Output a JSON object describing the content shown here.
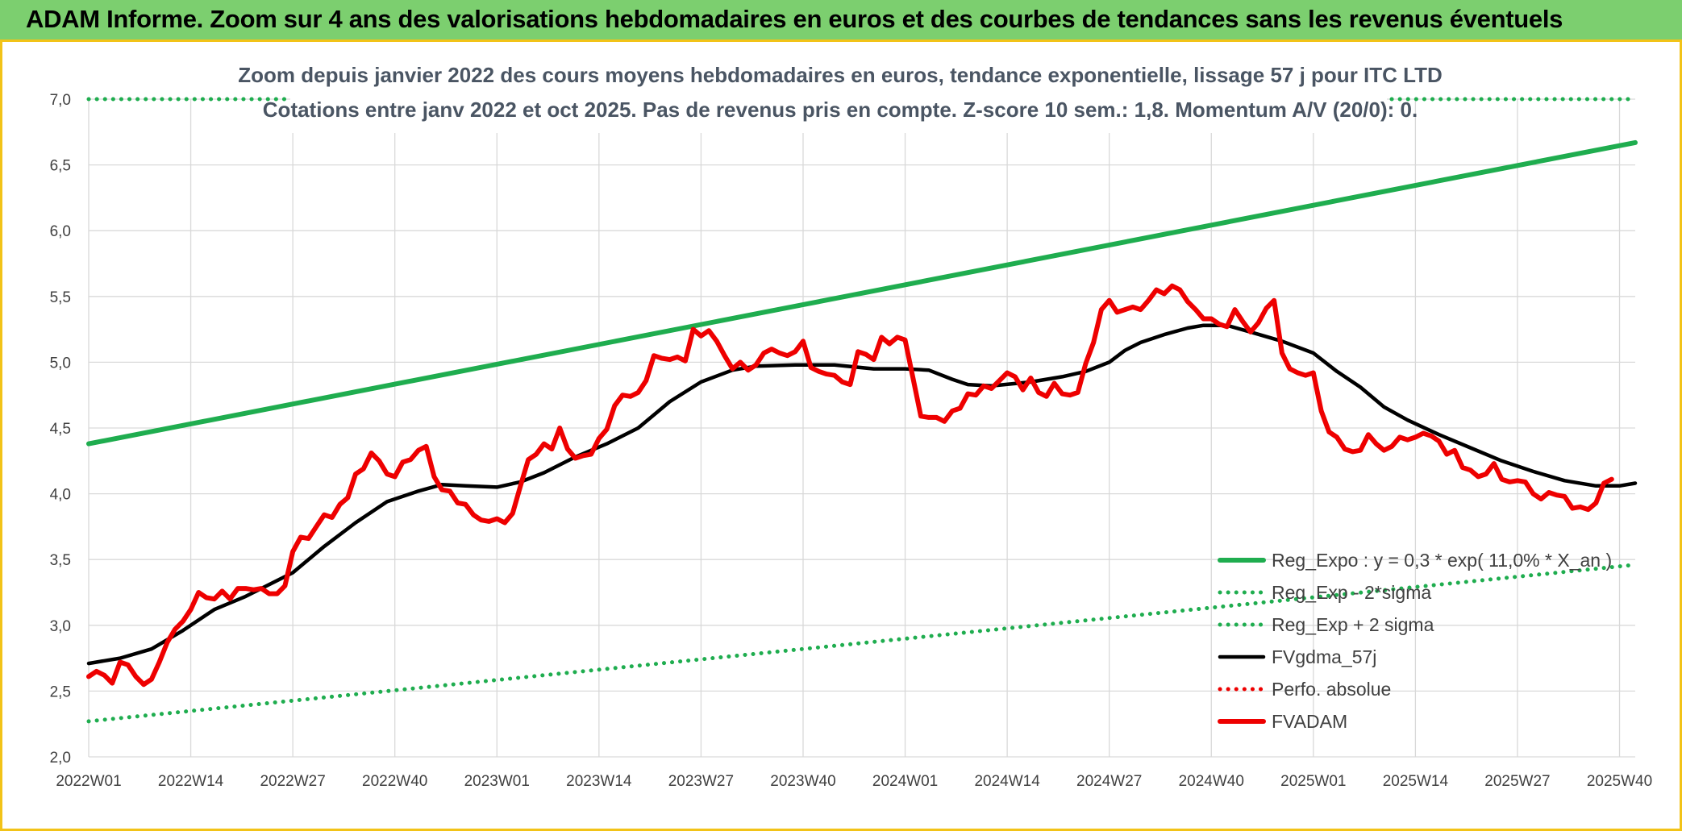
{
  "header": {
    "title": "ADAM Informe. Zoom sur 4 ans des valorisations hebdomadaires en euros et des courbes de tendances sans les revenus éventuels"
  },
  "colors": {
    "banner": "#7ccf6f",
    "border": "#f2c318",
    "trend": "#1fad4f",
    "price": "#ee0000",
    "ma": "#000000",
    "perf": "#ee0000"
  },
  "chart_data": {
    "type": "line",
    "title_lines": [
      "Zoom depuis janvier 2022 des cours moyens hebdomadaires en euros, tendance exponentielle, lissage 57 j pour ITC LTD",
      "Cotations entre janv 2022 et oct 2025. Pas de revenus pris en compte. Z-score 10 sem.: 1,8. Momentum A/V (20/0): 0."
    ],
    "x_ticks": [
      "2022W01",
      "2022W14",
      "2022W27",
      "2022W40",
      "2023W01",
      "2023W14",
      "2023W27",
      "2023W40",
      "2024W01",
      "2024W14",
      "2024W27",
      "2024W40",
      "2025W01",
      "2025W14",
      "2025W27",
      "2025W40"
    ],
    "x_range": [
      0,
      197
    ],
    "y_ticks": [
      "2,0",
      "2,5",
      "3,0",
      "3,5",
      "4,0",
      "4,5",
      "5,0",
      "5,5",
      "6,0",
      "6,5",
      "7,0"
    ],
    "ylim": [
      2.0,
      7.0
    ],
    "grid": true,
    "legend_position": "bottom-right",
    "series": [
      {
        "name": "Reg_Expo : y = 0,3 * exp( 11,0% *  X_an )",
        "style": "solid-thick",
        "color": "#1fad4f",
        "points": [
          [
            0,
            4.38
          ],
          [
            197,
            6.67
          ]
        ]
      },
      {
        "name": "Reg_Exp - 2*sigma",
        "style": "dotted",
        "color": "#1fad4f",
        "points": [
          [
            0,
            2.27
          ],
          [
            197,
            3.46
          ]
        ]
      },
      {
        "name": "Reg_Exp + 2 sigma",
        "style": "dotted",
        "color": "#1fad4f",
        "points": [
          [
            0,
            7.0
          ],
          [
            197,
            7.0
          ]
        ]
      },
      {
        "name": "FVgdma_57j",
        "style": "solid",
        "color": "#000000",
        "points": [
          [
            0,
            2.71
          ],
          [
            4,
            2.75
          ],
          [
            8,
            2.82
          ],
          [
            12,
            2.96
          ],
          [
            16,
            3.12
          ],
          [
            20,
            3.22
          ],
          [
            26,
            3.4
          ],
          [
            30,
            3.6
          ],
          [
            34,
            3.78
          ],
          [
            38,
            3.94
          ],
          [
            42,
            4.02
          ],
          [
            45,
            4.07
          ],
          [
            48,
            4.06
          ],
          [
            52,
            4.05
          ],
          [
            55,
            4.09
          ],
          [
            58,
            4.16
          ],
          [
            62,
            4.28
          ],
          [
            66,
            4.38
          ],
          [
            70,
            4.5
          ],
          [
            74,
            4.7
          ],
          [
            78,
            4.85
          ],
          [
            82,
            4.94
          ],
          [
            85,
            4.97
          ],
          [
            90,
            4.98
          ],
          [
            95,
            4.98
          ],
          [
            100,
            4.95
          ],
          [
            104,
            4.95
          ],
          [
            107,
            4.94
          ],
          [
            110,
            4.87
          ],
          [
            112,
            4.83
          ],
          [
            115,
            4.82
          ],
          [
            120,
            4.85
          ],
          [
            124,
            4.89
          ],
          [
            127,
            4.93
          ],
          [
            130,
            5.0
          ],
          [
            132,
            5.09
          ],
          [
            134,
            5.15
          ],
          [
            137,
            5.21
          ],
          [
            140,
            5.26
          ],
          [
            142,
            5.28
          ],
          [
            145,
            5.28
          ],
          [
            148,
            5.23
          ],
          [
            152,
            5.16
          ],
          [
            156,
            5.07
          ],
          [
            159,
            4.93
          ],
          [
            162,
            4.81
          ],
          [
            165,
            4.66
          ],
          [
            168,
            4.56
          ],
          [
            172,
            4.45
          ],
          [
            176,
            4.35
          ],
          [
            180,
            4.25
          ],
          [
            184,
            4.17
          ],
          [
            188,
            4.1
          ],
          [
            192,
            4.06
          ],
          [
            195,
            4.06
          ],
          [
            197,
            4.08
          ]
        ]
      },
      {
        "name": "Perfo. absolue",
        "style": "dotted",
        "color": "#ee0000",
        "points": []
      },
      {
        "name": "FVADAM",
        "style": "solid-thick",
        "color": "#ee0000",
        "points": [
          [
            0,
            2.61
          ],
          [
            1,
            2.65
          ],
          [
            2,
            2.62
          ],
          [
            3,
            2.56
          ],
          [
            4,
            2.72
          ],
          [
            5,
            2.7
          ],
          [
            6,
            2.61
          ],
          [
            7,
            2.55
          ],
          [
            8,
            2.59
          ],
          [
            9,
            2.72
          ],
          [
            10,
            2.87
          ],
          [
            11,
            2.97
          ],
          [
            12,
            3.03
          ],
          [
            13,
            3.12
          ],
          [
            14,
            3.25
          ],
          [
            15,
            3.21
          ],
          [
            16,
            3.2
          ],
          [
            17,
            3.26
          ],
          [
            18,
            3.2
          ],
          [
            19,
            3.28
          ],
          [
            20,
            3.28
          ],
          [
            21,
            3.27
          ],
          [
            22,
            3.28
          ],
          [
            23,
            3.24
          ],
          [
            24,
            3.24
          ],
          [
            25,
            3.3
          ],
          [
            26,
            3.56
          ],
          [
            27,
            3.67
          ],
          [
            28,
            3.66
          ],
          [
            29,
            3.75
          ],
          [
            30,
            3.84
          ],
          [
            31,
            3.82
          ],
          [
            32,
            3.92
          ],
          [
            33,
            3.97
          ],
          [
            34,
            4.15
          ],
          [
            35,
            4.19
          ],
          [
            36,
            4.31
          ],
          [
            37,
            4.25
          ],
          [
            38,
            4.15
          ],
          [
            39,
            4.13
          ],
          [
            40,
            4.24
          ],
          [
            41,
            4.26
          ],
          [
            42,
            4.33
          ],
          [
            43,
            4.36
          ],
          [
            44,
            4.13
          ],
          [
            45,
            4.03
          ],
          [
            46,
            4.02
          ],
          [
            47,
            3.93
          ],
          [
            48,
            3.92
          ],
          [
            49,
            3.84
          ],
          [
            50,
            3.8
          ],
          [
            51,
            3.79
          ],
          [
            52,
            3.81
          ],
          [
            53,
            3.78
          ],
          [
            54,
            3.85
          ],
          [
            55,
            4.06
          ],
          [
            56,
            4.26
          ],
          [
            57,
            4.3
          ],
          [
            58,
            4.38
          ],
          [
            59,
            4.34
          ],
          [
            60,
            4.5
          ],
          [
            61,
            4.34
          ],
          [
            62,
            4.27
          ],
          [
            63,
            4.29
          ],
          [
            64,
            4.3
          ],
          [
            65,
            4.42
          ],
          [
            66,
            4.49
          ],
          [
            67,
            4.67
          ],
          [
            68,
            4.75
          ],
          [
            69,
            4.74
          ],
          [
            70,
            4.77
          ],
          [
            71,
            4.86
          ],
          [
            72,
            5.05
          ],
          [
            73,
            5.03
          ],
          [
            74,
            5.02
          ],
          [
            75,
            5.04
          ],
          [
            76,
            5.01
          ],
          [
            77,
            5.25
          ],
          [
            78,
            5.2
          ],
          [
            79,
            5.24
          ],
          [
            80,
            5.16
          ],
          [
            81,
            5.05
          ],
          [
            82,
            4.95
          ],
          [
            83,
            5.0
          ],
          [
            84,
            4.94
          ],
          [
            85,
            4.98
          ],
          [
            86,
            5.07
          ],
          [
            87,
            5.1
          ],
          [
            88,
            5.07
          ],
          [
            89,
            5.05
          ],
          [
            90,
            5.08
          ],
          [
            91,
            5.16
          ],
          [
            92,
            4.96
          ],
          [
            93,
            4.93
          ],
          [
            94,
            4.91
          ],
          [
            95,
            4.9
          ],
          [
            96,
            4.85
          ],
          [
            97,
            4.83
          ],
          [
            98,
            5.08
          ],
          [
            99,
            5.06
          ],
          [
            100,
            5.02
          ],
          [
            101,
            5.19
          ],
          [
            102,
            5.14
          ],
          [
            103,
            5.19
          ],
          [
            104,
            5.17
          ],
          [
            105,
            4.88
          ],
          [
            106,
            4.59
          ],
          [
            107,
            4.58
          ],
          [
            108,
            4.58
          ],
          [
            109,
            4.55
          ],
          [
            110,
            4.63
          ],
          [
            111,
            4.65
          ],
          [
            112,
            4.76
          ],
          [
            113,
            4.75
          ],
          [
            114,
            4.82
          ],
          [
            115,
            4.8
          ],
          [
            116,
            4.86
          ],
          [
            117,
            4.92
          ],
          [
            118,
            4.89
          ],
          [
            119,
            4.79
          ],
          [
            120,
            4.88
          ],
          [
            121,
            4.77
          ],
          [
            122,
            4.74
          ],
          [
            123,
            4.84
          ],
          [
            124,
            4.76
          ],
          [
            125,
            4.75
          ],
          [
            126,
            4.77
          ],
          [
            127,
            4.99
          ],
          [
            128,
            5.15
          ],
          [
            129,
            5.4
          ],
          [
            130,
            5.47
          ],
          [
            131,
            5.38
          ],
          [
            132,
            5.4
          ],
          [
            133,
            5.42
          ],
          [
            134,
            5.4
          ],
          [
            135,
            5.47
          ],
          [
            136,
            5.55
          ],
          [
            137,
            5.52
          ],
          [
            138,
            5.58
          ],
          [
            139,
            5.55
          ],
          [
            140,
            5.46
          ],
          [
            141,
            5.4
          ],
          [
            142,
            5.33
          ],
          [
            143,
            5.33
          ],
          [
            144,
            5.29
          ],
          [
            145,
            5.27
          ],
          [
            146,
            5.4
          ],
          [
            147,
            5.31
          ],
          [
            148,
            5.23
          ],
          [
            149,
            5.3
          ],
          [
            150,
            5.41
          ],
          [
            151,
            5.47
          ],
          [
            152,
            5.07
          ],
          [
            153,
            4.95
          ],
          [
            154,
            4.92
          ],
          [
            155,
            4.9
          ],
          [
            156,
            4.92
          ],
          [
            157,
            4.63
          ],
          [
            158,
            4.47
          ],
          [
            159,
            4.43
          ],
          [
            160,
            4.34
          ],
          [
            161,
            4.32
          ],
          [
            162,
            4.33
          ],
          [
            163,
            4.45
          ],
          [
            164,
            4.38
          ],
          [
            165,
            4.33
          ],
          [
            166,
            4.36
          ],
          [
            167,
            4.43
          ],
          [
            168,
            4.41
          ],
          [
            169,
            4.43
          ],
          [
            170,
            4.46
          ],
          [
            171,
            4.44
          ],
          [
            172,
            4.4
          ],
          [
            173,
            4.3
          ],
          [
            174,
            4.33
          ],
          [
            175,
            4.2
          ],
          [
            176,
            4.18
          ],
          [
            177,
            4.13
          ],
          [
            178,
            4.15
          ],
          [
            179,
            4.23
          ],
          [
            180,
            4.11
          ],
          [
            181,
            4.09
          ],
          [
            182,
            4.1
          ],
          [
            183,
            4.09
          ],
          [
            184,
            4.0
          ],
          [
            185,
            3.96
          ],
          [
            186,
            4.01
          ],
          [
            187,
            3.99
          ],
          [
            188,
            3.98
          ],
          [
            189,
            3.89
          ],
          [
            190,
            3.9
          ],
          [
            191,
            3.88
          ],
          [
            192,
            3.93
          ],
          [
            193,
            4.08
          ],
          [
            194,
            4.11
          ]
        ]
      }
    ]
  }
}
